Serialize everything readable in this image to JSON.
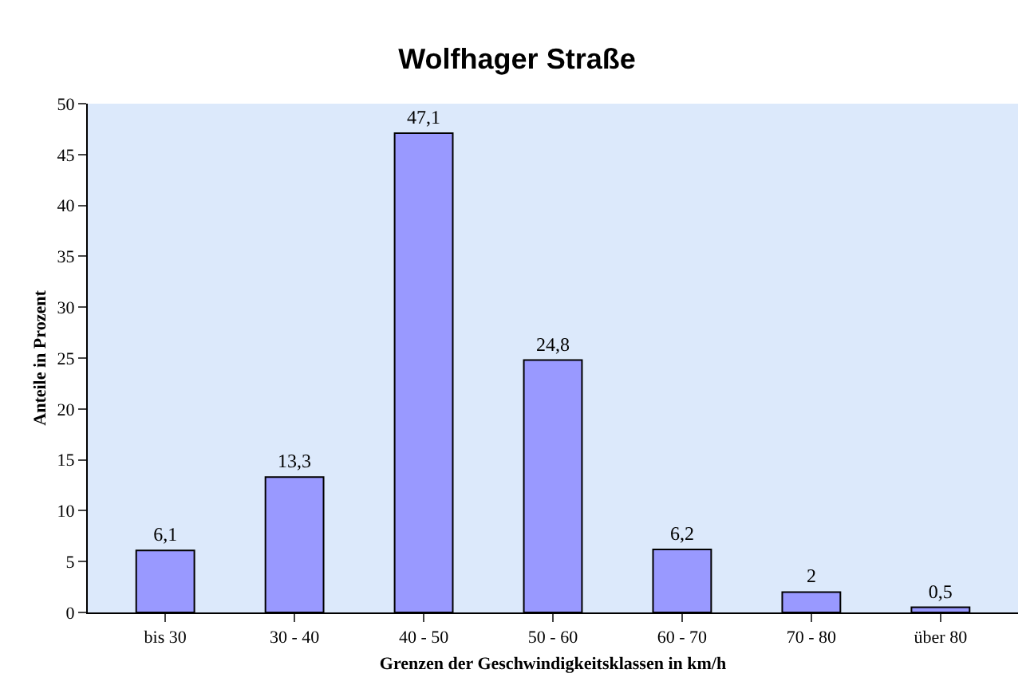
{
  "chart_data": {
    "type": "bar",
    "title": "Wolfhager Straße",
    "xlabel": "Grenzen der Geschwindigkeitsklassen in km/h",
    "ylabel": "Anteile in Prozent",
    "categories": [
      "bis 30",
      "30 - 40",
      "40 - 50",
      "50 - 60",
      "60 - 70",
      "70 - 80",
      "über 80"
    ],
    "values": [
      6.1,
      13.3,
      47.1,
      24.8,
      6.2,
      2,
      0.5
    ],
    "value_labels": [
      "6,1",
      "13,3",
      "47,1",
      "24,8",
      "6,2",
      "2",
      "0,5"
    ],
    "color": "#9999ff",
    "ylim": [
      0,
      50
    ],
    "yticks": [
      0,
      5,
      10,
      15,
      20,
      25,
      30,
      35,
      40,
      45,
      50
    ],
    "grid": false
  }
}
